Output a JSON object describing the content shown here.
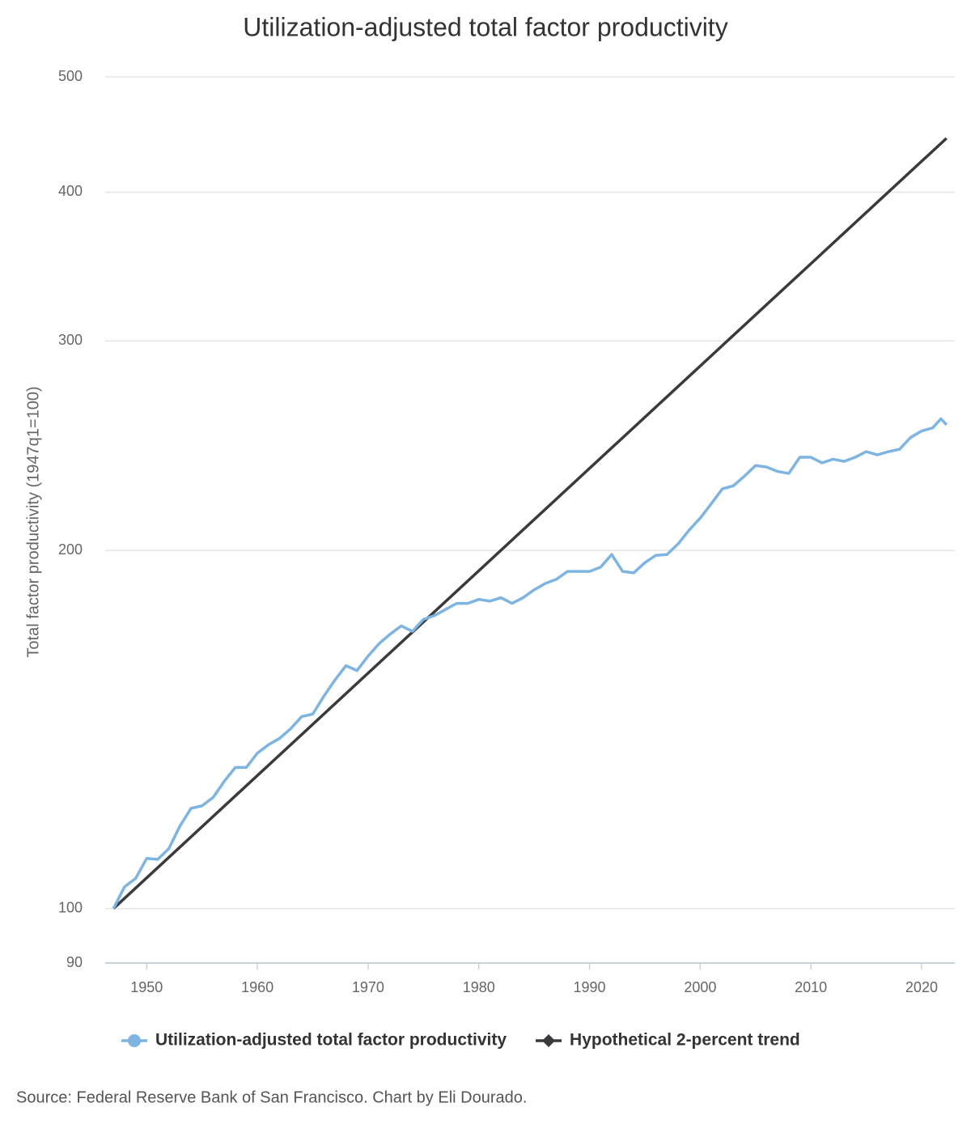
{
  "chart_data": {
    "type": "line",
    "title": "Utilization-adjusted total factor productivity",
    "y_label": "Total factor productivity (1947q1=100)",
    "source": "Source: Federal Reserve Bank of San Francisco. Chart by Eli Dourado.",
    "xlim": [
      1946.25,
      2023
    ],
    "xticks": [
      1950,
      1960,
      1970,
      1980,
      1990,
      2000,
      2010,
      2020
    ],
    "ylim": [
      90,
      500
    ],
    "yticks": [
      90,
      100,
      200,
      300,
      400,
      500
    ],
    "log_scale": true,
    "grid": true,
    "legend": "bottom",
    "series": [
      {
        "name": "Utilization-adjusted total factor productivity",
        "color": "#7eb4e2",
        "marker": "circle",
        "x": [
          1947,
          1948,
          1949,
          1950,
          1951,
          1952,
          1953,
          1954,
          1955,
          1956,
          1957,
          1958,
          1959,
          1960,
          1961,
          1962,
          1963,
          1964,
          1965,
          1966,
          1967,
          1968,
          1969,
          1970,
          1971,
          1972,
          1973,
          1974,
          1975,
          1976,
          1977,
          1978,
          1979,
          1980,
          1981,
          1982,
          1983,
          1984,
          1985,
          1986,
          1987,
          1988,
          1989,
          1990,
          1991,
          1992,
          1993,
          1994,
          1995,
          1996,
          1997,
          1998,
          1999,
          2000,
          2001,
          2002,
          2003,
          2004,
          2005,
          2006,
          2007,
          2008,
          2009,
          2010,
          2011,
          2012,
          2013,
          2014,
          2015,
          2016,
          2017,
          2018,
          2019,
          2020,
          2021,
          2021.75,
          2022.25
        ],
        "values": [
          100,
          104.3,
          106,
          110.2,
          110,
          112.3,
          117.3,
          121.4,
          122,
          124,
          127.9,
          131.4,
          131.4,
          135.1,
          137.3,
          139,
          141.6,
          145,
          145.7,
          150.8,
          155.6,
          160,
          158.5,
          163,
          167,
          170.1,
          172.8,
          171,
          175,
          176.3,
          178.4,
          180.5,
          180.5,
          181.9,
          181.3,
          182.5,
          180.5,
          182.5,
          185.3,
          187.6,
          189.1,
          192,
          192,
          192,
          193.6,
          198.4,
          192,
          191.5,
          195.3,
          198.1,
          198.4,
          202.5,
          208,
          212.9,
          218.9,
          225.3,
          226.6,
          230.9,
          235.7,
          235,
          233,
          232.1,
          239.5,
          239.5,
          236.9,
          238.6,
          237.6,
          239.5,
          242.1,
          240.6,
          242.1,
          243.2,
          248.8,
          252,
          253.5,
          258,
          255
        ]
      },
      {
        "name": "Hypothetical 2-percent trend",
        "color": "#3a3a3c",
        "marker": "diamond",
        "x": [
          1947,
          2022.25
        ],
        "values": [
          100,
          444
        ]
      }
    ]
  }
}
